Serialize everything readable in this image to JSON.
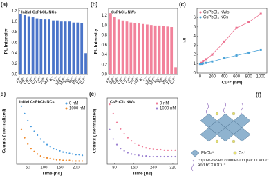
{
  "chart_data": [
    {
      "type": "bar",
      "panel_label": "(a)",
      "title": "Initial CsPbCl₃ NCs",
      "y_label": "PL Intensity",
      "categories": [
        "Al³⁺",
        "Ba²⁺",
        "Ca²⁺",
        "Cd²⁺",
        "Co²⁺",
        "Cr³⁺",
        "Fe³⁺",
        "Hg²⁺",
        "K⁺",
        "Li⁺",
        "Mg²⁺",
        "Mn²⁺",
        "Na⁺",
        "Ni²⁺",
        "Pb²⁺",
        "Zn²⁺",
        "Cu²⁺"
      ],
      "values": [
        1.14,
        1.12,
        1.1,
        1.08,
        1.06,
        1.05,
        1.04,
        1.04,
        1.02,
        1.02,
        1.0,
        1.0,
        1.0,
        0.98,
        0.98,
        0.97,
        0.4
      ],
      "color": "#4a74c9",
      "ylim": [
        0,
        1.25
      ],
      "yticks": [
        {
          "value": 0,
          "label": "0.0"
        },
        {
          "value": 0.2,
          "label": "0.2"
        },
        {
          "value": 0.4,
          "label": "0.4"
        },
        {
          "value": 0.6,
          "label": "0.6"
        },
        {
          "value": 0.8,
          "label": "0.8"
        },
        {
          "value": 1,
          "label": "1.0"
        },
        {
          "value": 1.2,
          "label": "1.2"
        }
      ]
    },
    {
      "type": "bar",
      "panel_label": "(b)",
      "title": "CsPbCl₃ NWs",
      "y_label": "PL Intensity",
      "categories": [
        "Al³⁺",
        "Ba²⁺",
        "Ca²⁺",
        "Cd²⁺",
        "Co²⁺",
        "Cr³⁺",
        "Fe³⁺",
        "Hg²⁺",
        "K⁺",
        "Li⁺",
        "Mg²⁺",
        "Mn²⁺",
        "Na⁺",
        "Ni²⁺",
        "Pb²⁺",
        "Zn²⁺",
        "Cu²⁺"
      ],
      "values": [
        1.25,
        1.18,
        1.12,
        1.1,
        1.08,
        1.06,
        1.05,
        1.04,
        1.03,
        1.02,
        1.01,
        1.0,
        1.0,
        0.99,
        0.98,
        0.97,
        0.15
      ],
      "color": "#f2829b",
      "ylim": [
        0,
        1.35
      ],
      "yticks": [
        {
          "value": 0,
          "label": "0.0"
        },
        {
          "value": 0.2,
          "label": "0.2"
        },
        {
          "value": 0.4,
          "label": "0.4"
        },
        {
          "value": 0.6,
          "label": "0.6"
        },
        {
          "value": 0.8,
          "label": "0.8"
        },
        {
          "value": 1,
          "label": "1.0"
        },
        {
          "value": 1.2,
          "label": "1.2"
        }
      ]
    },
    {
      "type": "scatter",
      "panel_label": "(c)",
      "x_label": "Cu²⁺ (nM)",
      "y_label": "I₀/I",
      "lines": true,
      "legend": "top-left",
      "x": [
        0,
        25,
        50,
        100,
        200,
        400,
        600,
        800,
        1000
      ],
      "series": [
        {
          "name": "CsPbCl₃ NWs",
          "color": "#ec6f8e",
          "values": [
            1.0,
            1.1,
            1.3,
            1.5,
            2.0,
            3.4,
            4.9,
            5.5,
            6.4
          ]
        },
        {
          "name": "CsPbCl₃ NCs",
          "color": "#4aa3d8",
          "values": [
            1.0,
            1.0,
            1.05,
            1.1,
            1.25,
            1.6,
            1.9,
            2.2,
            2.5
          ]
        }
      ],
      "xlim": [
        -50,
        1100
      ],
      "ylim": [
        0,
        7
      ],
      "xticks": [
        0,
        200,
        400,
        600,
        800,
        1000
      ],
      "yticks": [
        0,
        1,
        2,
        3,
        4,
        5,
        6
      ]
    },
    {
      "type": "scatter",
      "panel_label": "(d)",
      "title": "Initial CsPbCl₃ NCs",
      "x_label": "Time (ns)",
      "y_label": "Counts ( normalized)",
      "legend": "top-right",
      "x": [
        30,
        40,
        50,
        60,
        70,
        80,
        90,
        100,
        110,
        120,
        130,
        140,
        150,
        160,
        170,
        180,
        190,
        200,
        210,
        220
      ],
      "series": [
        {
          "name": "0 nM",
          "color": "#4a9de0",
          "values": [
            0.92,
            0.8,
            0.69,
            0.6,
            0.52,
            0.46,
            0.4,
            0.35,
            0.31,
            0.28,
            0.25,
            0.23,
            0.21,
            0.19,
            0.18,
            0.17,
            0.16,
            0.15,
            0.15,
            0.14
          ]
        },
        {
          "name": "1000 nM",
          "color": "#ef8a2c",
          "values": [
            0.55,
            0.42,
            0.32,
            0.25,
            0.2,
            0.16,
            0.13,
            0.11,
            0.1,
            0.09,
            0.08,
            0.07,
            0.07,
            0.06,
            0.06,
            0.06,
            0.05,
            0.05,
            0.05,
            0.05
          ]
        }
      ],
      "xlim": [
        15,
        235
      ],
      "ylim": [
        0,
        1.05
      ],
      "xticks": [
        50,
        100,
        150,
        200
      ]
    },
    {
      "type": "scatter",
      "panel_label": "(e)",
      "title": "CsPbCl₃ NWs",
      "x_label": "Time (ns)",
      "y_label": "Counts ( normalized)",
      "legend": "top-right",
      "x": [
        60,
        75,
        90,
        105,
        120,
        135,
        150,
        165,
        180,
        195,
        210,
        225,
        240,
        255,
        270,
        285,
        300,
        315,
        330
      ],
      "series": [
        {
          "name": "0 nM",
          "color": "#f07d98",
          "values": [
            0.95,
            0.8,
            0.66,
            0.56,
            0.48,
            0.42,
            0.37,
            0.33,
            0.3,
            0.28,
            0.26,
            0.25,
            0.24,
            0.23,
            0.23,
            0.22,
            0.22,
            0.22,
            0.22
          ]
        },
        {
          "name": "1000 nM",
          "color": "#9a7fd0",
          "values": [
            0.55,
            0.4,
            0.31,
            0.25,
            0.21,
            0.18,
            0.16,
            0.15,
            0.14,
            0.13,
            0.13,
            0.12,
            0.12,
            0.12,
            0.12,
            0.12,
            0.12,
            0.12,
            0.12
          ]
        }
      ],
      "xlim": [
        50,
        340
      ],
      "ylim": [
        0,
        1.05
      ],
      "xticks": [
        80,
        160,
        240,
        320
      ]
    }
  ],
  "diagram": {
    "panel_label": "(f)",
    "octahedron_label": "PbCl₆⁴⁻",
    "cation_label": "Cs⁺",
    "pair_label": "copper-based counter-ion pair of AcO⁻ and RCOOCu⁺"
  }
}
